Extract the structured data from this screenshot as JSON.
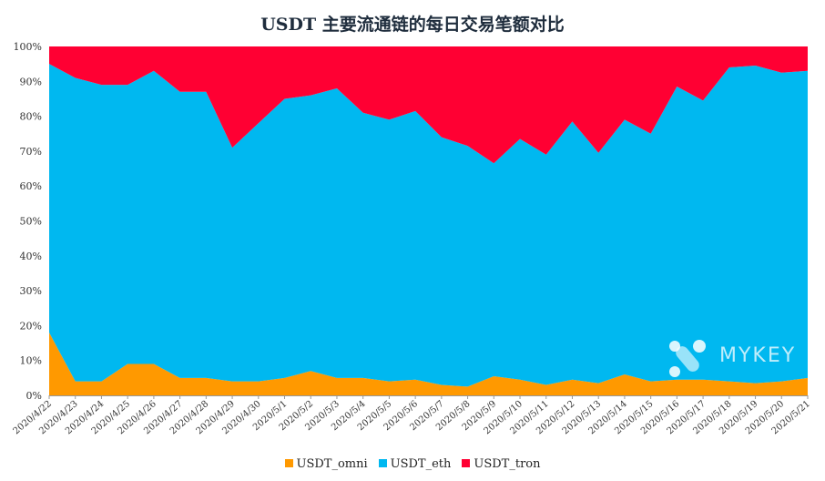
{
  "chart_data": {
    "type": "area",
    "stacked": true,
    "percent": true,
    "title": "USDT 主要流通链的每日交易笔额对比",
    "categories": [
      "2020/4/22",
      "2020/4/23",
      "2020/4/24",
      "2020/4/25",
      "2020/4/26",
      "2020/4/27",
      "2020/4/28",
      "2020/4/29",
      "2020/4/30",
      "2020/5/1",
      "2020/5/2",
      "2020/5/3",
      "2020/5/4",
      "2020/5/5",
      "2020/5/6",
      "2020/5/7",
      "2020/5/8",
      "2020/5/9",
      "2020/5/10",
      "2020/5/11",
      "2020/5/12",
      "2020/5/13",
      "2020/5/14",
      "2020/5/15",
      "2020/5/16",
      "2020/5/17",
      "2020/5/18",
      "2020/5/19",
      "2020/5/20",
      "2020/5/21"
    ],
    "series": [
      {
        "name": "USDT_omni",
        "color": "#ff9900",
        "values": [
          18,
          4,
          4,
          9,
          9,
          5,
          5,
          4,
          4,
          5,
          7,
          5,
          5,
          4,
          4.5,
          3,
          2.5,
          5.5,
          4.5,
          3,
          4.5,
          3.5,
          6,
          4,
          4.5,
          4.5,
          4,
          3.5,
          4,
          5
        ]
      },
      {
        "name": "USDT_eth",
        "color": "#00b8f0",
        "values": [
          77,
          87,
          85,
          80,
          84,
          82,
          82,
          67,
          74,
          80,
          79,
          83,
          76,
          75,
          77,
          71,
          69,
          61,
          69,
          66,
          74,
          66,
          73,
          71,
          84,
          80,
          90,
          91,
          88.5,
          88
        ]
      },
      {
        "name": "USDT_tron",
        "color": "#ff0033",
        "values": [
          5,
          9,
          11,
          11,
          7,
          13,
          13,
          29,
          22,
          15,
          14,
          12,
          19,
          21,
          18.5,
          26,
          28.5,
          33.5,
          26.5,
          31,
          21.5,
          30.5,
          21,
          25,
          11.5,
          15.5,
          6,
          5.5,
          7.5,
          7
        ]
      }
    ],
    "ylim": [
      0,
      100
    ],
    "yticks": [
      "0%",
      "10%",
      "20%",
      "30%",
      "40%",
      "50%",
      "60%",
      "70%",
      "80%",
      "90%",
      "100%"
    ],
    "legend_position": "bottom",
    "grid": false
  },
  "watermark": {
    "text": "MYKEY"
  }
}
